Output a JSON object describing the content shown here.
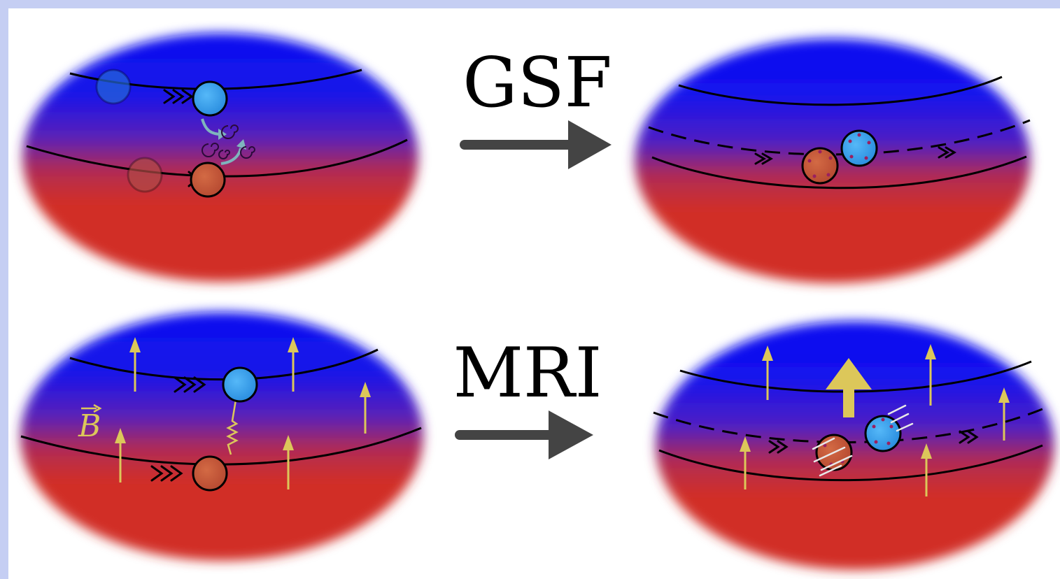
{
  "labels": {
    "top_process": "GSF",
    "bottom_process": "MRI",
    "field_symbol": "B"
  },
  "colors": {
    "frame": "#c5cef3",
    "background": "#ffffff",
    "hot_region": "#d12f28",
    "cool_region": "#0a10f0",
    "parcel_cool": "#3ea7f2",
    "parcel_hot": "#c55a3c",
    "field_arrows": "#dcc75a",
    "process_arrow": "#444444",
    "contour_lines": "#000000"
  },
  "icons": {
    "process_arrow": "right-arrow-icon",
    "field_arrow": "up-arrow-icon",
    "turbulence": "swirl-icon",
    "coupling": "spring-icon"
  }
}
